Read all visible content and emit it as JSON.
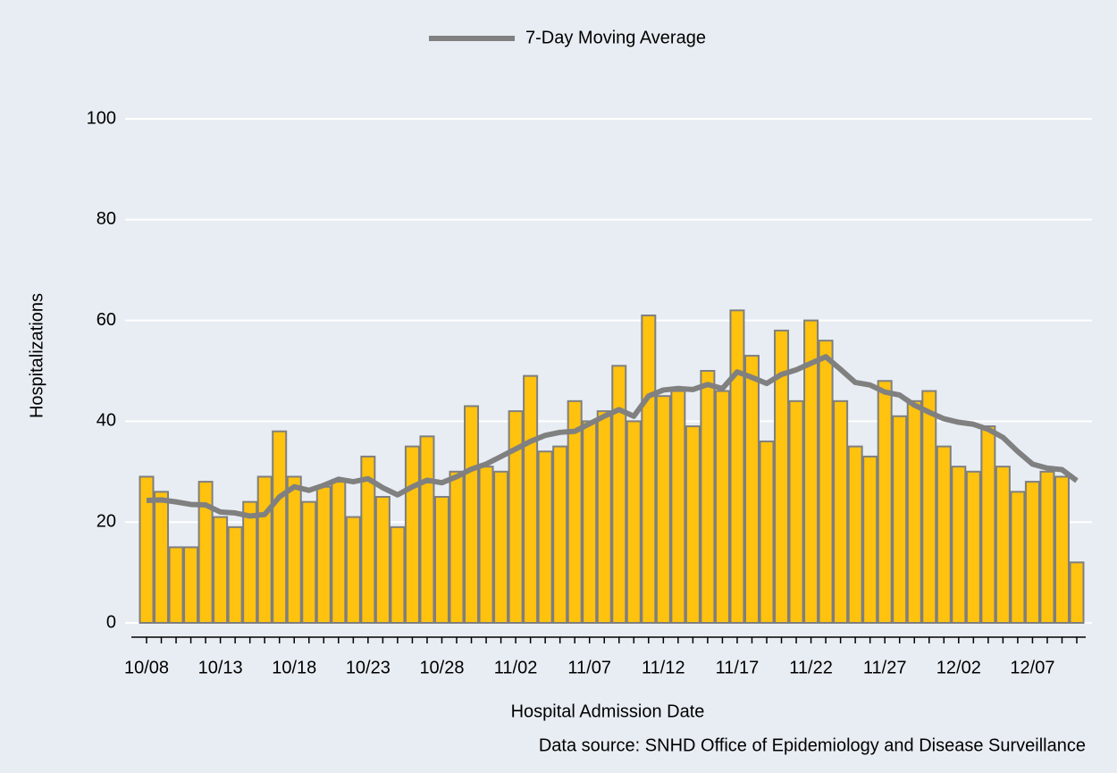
{
  "chart_data": {
    "type": "bar",
    "x_label": "Hospital Admission Date",
    "y_label": "Hospitalizations",
    "source": "Data source: SNHD Office of Epidemiology and Disease Surveillance",
    "categories": [
      "10/08",
      null,
      null,
      null,
      null,
      "10/13",
      null,
      null,
      null,
      null,
      "10/18",
      null,
      null,
      null,
      null,
      "10/23",
      null,
      null,
      null,
      null,
      "10/28",
      null,
      null,
      null,
      null,
      "11/02",
      null,
      null,
      null,
      null,
      "11/07",
      null,
      null,
      null,
      null,
      "11/12",
      null,
      null,
      null,
      null,
      "11/17",
      null,
      null,
      null,
      null,
      "11/22",
      null,
      null,
      null,
      null,
      "11/27",
      null,
      null,
      null,
      null,
      "12/02",
      null,
      null,
      null,
      null,
      "12/07",
      null,
      null,
      null
    ],
    "values": [
      29,
      26,
      15,
      15,
      28,
      21,
      19,
      24,
      29,
      38,
      29,
      24,
      27,
      28,
      21,
      33,
      25,
      19,
      35,
      37,
      25,
      30,
      43,
      31,
      30,
      42,
      49,
      34,
      35,
      44,
      40,
      42,
      51,
      40,
      61,
      45,
      46,
      39,
      50,
      46,
      62,
      53,
      36,
      58,
      44,
      60,
      56,
      44,
      35,
      33,
      48,
      41,
      44,
      46,
      35,
      31,
      30,
      39,
      31,
      26,
      28,
      30,
      29,
      12
    ],
    "color": "#ffc20e",
    "edge_color": "#7f7f7f",
    "series": [
      {
        "name": "7-Day Moving Average",
        "color": "#808080",
        "type": "line",
        "values": [
          24.3,
          24.4,
          24,
          23.5,
          23.4,
          22,
          21.8,
          21.2,
          21.5,
          25,
          27,
          26.3,
          27.3,
          28.5,
          28,
          28.6,
          26.8,
          25.4,
          27,
          28.3,
          27.8,
          29,
          30.5,
          31.5,
          33,
          34.5,
          36,
          37.2,
          37.8,
          38,
          39.5,
          41,
          42.3,
          41,
          45,
          46.2,
          46.5,
          46.3,
          47.3,
          46.5,
          49.8,
          48.7,
          47.5,
          49.3,
          50.2,
          51.5,
          52.8,
          50.3,
          47.7,
          47.2,
          45.8,
          45.2,
          43.2,
          41.8,
          40.5,
          39.8,
          39.4,
          38.4,
          36.8,
          34,
          31.5,
          30.7,
          30.4,
          28.2
        ]
      }
    ],
    "ylim": [
      0,
      100
    ],
    "yticks": [
      0,
      20,
      40,
      60,
      80,
      100
    ],
    "grid": true,
    "legend": "top"
  }
}
